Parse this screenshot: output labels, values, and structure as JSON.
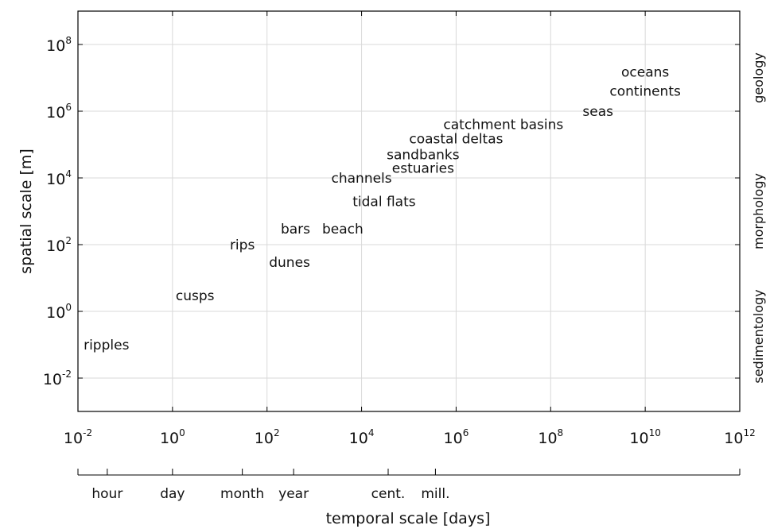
{
  "chart_data": {
    "type": "scatter",
    "xlabel": "temporal scale [days]",
    "ylabel": "spatial scale [m]",
    "x_scale": "log",
    "y_scale": "log",
    "xlim": [
      0.01,
      1000000000000
    ],
    "ylim": [
      0.001,
      1000000000
    ],
    "grid": true,
    "x_ticks": [
      {
        "base": "10",
        "exp": "-2",
        "value": 0.01
      },
      {
        "base": "10",
        "exp": "0",
        "value": 1
      },
      {
        "base": "10",
        "exp": "2",
        "value": 100
      },
      {
        "base": "10",
        "exp": "4",
        "value": 10000
      },
      {
        "base": "10",
        "exp": "6",
        "value": 1000000
      },
      {
        "base": "10",
        "exp": "8",
        "value": 100000000
      },
      {
        "base": "10",
        "exp": "10",
        "value": 10000000000
      },
      {
        "base": "10",
        "exp": "12",
        "value": 1000000000000
      }
    ],
    "y_ticks": [
      {
        "base": "10",
        "exp": "-2",
        "value": 0.01
      },
      {
        "base": "10",
        "exp": "0",
        "value": 1
      },
      {
        "base": "10",
        "exp": "2",
        "value": 100
      },
      {
        "base": "10",
        "exp": "4",
        "value": 10000
      },
      {
        "base": "10",
        "exp": "6",
        "value": 1000000
      },
      {
        "base": "10",
        "exp": "8",
        "value": 100000000
      }
    ],
    "points": [
      {
        "label": "ripples",
        "x": 0.04,
        "y": 0.1
      },
      {
        "label": "cusps",
        "x": 3,
        "y": 3
      },
      {
        "label": "rips",
        "x": 30,
        "y": 100
      },
      {
        "label": "dunes",
        "x": 300,
        "y": 30
      },
      {
        "label": "bars",
        "x": 400,
        "y": 300
      },
      {
        "label": "beach",
        "x": 4000,
        "y": 300
      },
      {
        "label": "tidal flats",
        "x": 30000,
        "y": 2000
      },
      {
        "label": "channels",
        "x": 10000,
        "y": 10000
      },
      {
        "label": "estuaries",
        "x": 200000,
        "y": 20000
      },
      {
        "label": "sandbanks",
        "x": 200000,
        "y": 50000
      },
      {
        "label": "coastal deltas",
        "x": 1000000,
        "y": 150000
      },
      {
        "label": "catchment basins",
        "x": 10000000,
        "y": 400000
      },
      {
        "label": "seas",
        "x": 1000000000,
        "y": 1000000
      },
      {
        "label": "continents",
        "x": 10000000000,
        "y": 4000000
      },
      {
        "label": "oceans",
        "x": 10000000000,
        "y": 15000000
      }
    ],
    "right_labels": [
      {
        "text": "geology",
        "from_exp": 5.5,
        "to_exp": 8.5
      },
      {
        "text": "morphology",
        "from_exp": 1,
        "to_exp": 5
      },
      {
        "text": "sedimentology",
        "from_exp": -2.5,
        "to_exp": 1
      }
    ],
    "time_markers": [
      {
        "label": "hour",
        "value": 0.0417
      },
      {
        "label": "day",
        "value": 1
      },
      {
        "label": "month",
        "value": 30
      },
      {
        "label": "year",
        "value": 365
      },
      {
        "label": "cent.",
        "value": 36500
      },
      {
        "label": "mill.",
        "value": 365000
      }
    ]
  }
}
